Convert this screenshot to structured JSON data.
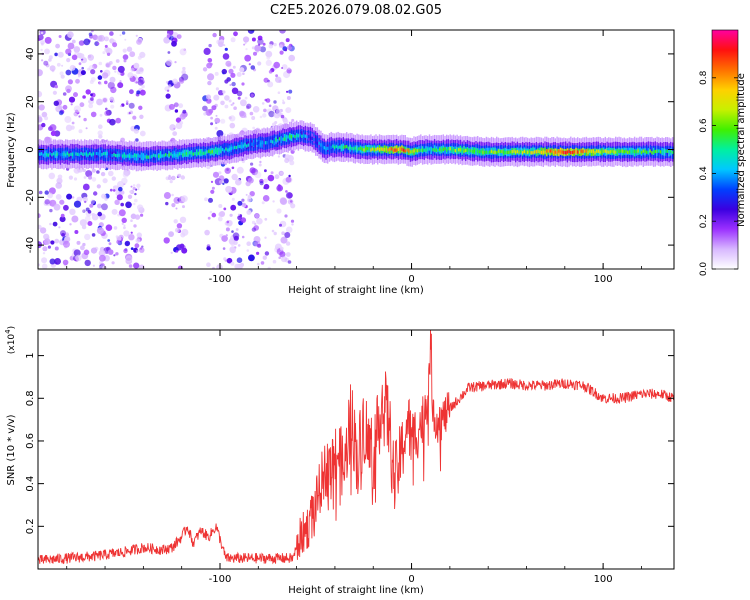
{
  "title": "C2E5.2026.079.08.02.G05",
  "chart_data": [
    {
      "type": "heatmap",
      "xlabel": "Height of straight line (km)",
      "ylabel": "Frequency (Hz)",
      "xlim": [
        -195,
        137
      ],
      "ylim": [
        -50,
        50
      ],
      "xticks": [
        -100,
        0,
        100
      ],
      "xtick_labels": [
        "-100",
        "0",
        "100"
      ],
      "yticks": [
        -40,
        -20,
        0,
        20,
        40
      ],
      "ytick_labels": [
        "-40",
        "-20",
        "0",
        "20",
        "40"
      ],
      "colorbar": {
        "label": "Normalized spectral amplitude",
        "range": [
          0,
          1
        ],
        "ticks": [
          0.0,
          0.2,
          0.4,
          0.6,
          0.8
        ],
        "tick_labels": [
          "0.0",
          "0.2",
          "0.4",
          "0.6",
          "0.8"
        ],
        "colors": [
          "#ffffff",
          "#d8b8ff",
          "#9b30ff",
          "#3a00e0",
          "#0040ff",
          "#00c8ff",
          "#00f0a0",
          "#40f000",
          "#c8f000",
          "#ffd000",
          "#ff7000",
          "#ff1010",
          "#ff00a0"
        ]
      },
      "ridge": {
        "x": [
          -195,
          -180,
          -160,
          -140,
          -120,
          -105,
          -95,
          -85,
          -75,
          -65,
          -58,
          -52,
          -48,
          -45,
          -42,
          -35,
          -25,
          -15,
          -5,
          0,
          5,
          10,
          20,
          40,
          60,
          80,
          100,
          120,
          137
        ],
        "y": [
          -2,
          -2,
          -2,
          -3,
          -2,
          -1,
          0,
          2,
          3,
          5,
          6,
          5,
          2,
          0,
          1,
          1,
          0,
          0,
          0,
          -1,
          0,
          0,
          0,
          -1,
          -1,
          -1,
          -1,
          -1,
          -1
        ],
        "amplitude": [
          0.4,
          0.45,
          0.4,
          0.45,
          0.5,
          0.55,
          0.45,
          0.4,
          0.4,
          0.5,
          0.45,
          0.3,
          0.35,
          0.4,
          0.45,
          0.5,
          0.6,
          0.7,
          0.85,
          0.7,
          0.6,
          0.5,
          0.6,
          0.6,
          0.65,
          0.9,
          0.65,
          0.55,
          0.5
        ]
      },
      "noise_bands": [
        [
          -195,
          -140
        ],
        [
          -128,
          -118
        ],
        [
          -108,
          -62
        ]
      ]
    },
    {
      "type": "line",
      "xlabel": "Height of straight line (km)",
      "ylabel": "SNR (10 * v/v)",
      "y_scale_label": "(x10",
      "y_scale_exp": "4",
      "y_scale_close": ")",
      "xlim": [
        -195,
        137
      ],
      "ylim": [
        0,
        1.12
      ],
      "xticks": [
        -100,
        0,
        100
      ],
      "xtick_labels": [
        "-100",
        "0",
        "100"
      ],
      "yticks": [
        0.2,
        0.4,
        0.6,
        0.8,
        1.0
      ],
      "ytick_labels": [
        "0.2",
        "0.4",
        "0.6",
        "0.8",
        "1"
      ],
      "color": "#ee3333",
      "series": {
        "name": "SNR",
        "x": [
          -195,
          -180,
          -165,
          -150,
          -140,
          -130,
          -125,
          -120,
          -117,
          -114,
          -110,
          -106,
          -102,
          -97,
          -90,
          -80,
          -70,
          -62,
          -58,
          -54,
          -50,
          -46,
          -42,
          -38,
          -35,
          -32,
          -28,
          -25,
          -22,
          -18,
          -16,
          -12,
          -9,
          -5,
          -2,
          0,
          3,
          6,
          9,
          10,
          11,
          13,
          16,
          20,
          25,
          30,
          40,
          50,
          60,
          70,
          80,
          90,
          100,
          110,
          120,
          130,
          137
        ],
        "y": [
          0.04,
          0.05,
          0.06,
          0.08,
          0.1,
          0.09,
          0.1,
          0.15,
          0.2,
          0.12,
          0.18,
          0.15,
          0.2,
          0.05,
          0.05,
          0.05,
          0.05,
          0.05,
          0.15,
          0.2,
          0.3,
          0.45,
          0.5,
          0.55,
          0.45,
          0.75,
          0.5,
          0.7,
          0.55,
          0.6,
          0.8,
          0.7,
          0.4,
          0.55,
          0.7,
          0.6,
          0.65,
          0.7,
          0.85,
          1.12,
          0.75,
          0.7,
          0.7,
          0.75,
          0.8,
          0.85,
          0.86,
          0.87,
          0.86,
          0.86,
          0.87,
          0.86,
          0.8,
          0.8,
          0.82,
          0.82,
          0.8
        ]
      }
    }
  ]
}
